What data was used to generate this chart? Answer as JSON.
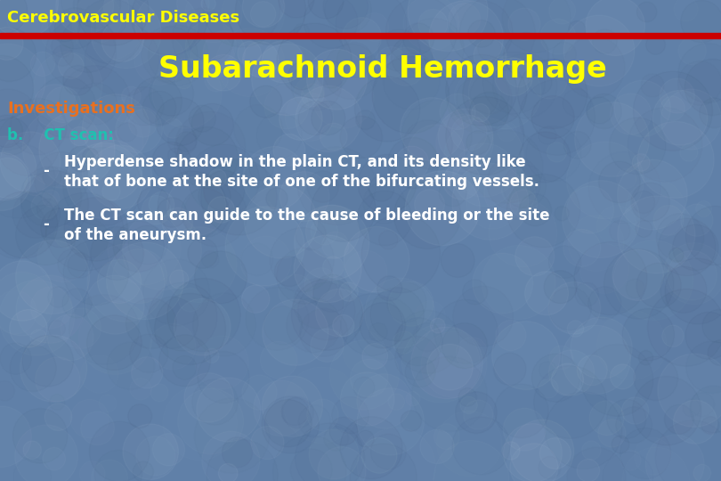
{
  "title_bar_text": "Cerebrovascular Diseases",
  "title_bar_bg_color": "#5b78a0",
  "title_bar_text_color": "#ffff00",
  "red_line_color": "#cc0000",
  "main_title": "Subarachnoid Hemorrhage",
  "main_title_color": "#ffff00",
  "section_label": "Investigations",
  "section_label_color": "#e87020",
  "subsection_label": "b.    CT scan:",
  "subsection_color": "#20c0b0",
  "bullet1_dash": "-",
  "bullet1_text_line1": "Hyperdense shadow in the plain CT, and its density like",
  "bullet1_text_line2": "that of bone at the site of one of the bifurcating vessels.",
  "bullet2_dash": "-",
  "bullet2_text_line1": "The CT scan can guide to the cause of bleeding or the site",
  "bullet2_text_line2": "of the aneurysm.",
  "bullet_text_color": "#ffffff",
  "bg_color": "#6080a8",
  "figsize": [
    8.1,
    5.4
  ],
  "dpi": 100
}
